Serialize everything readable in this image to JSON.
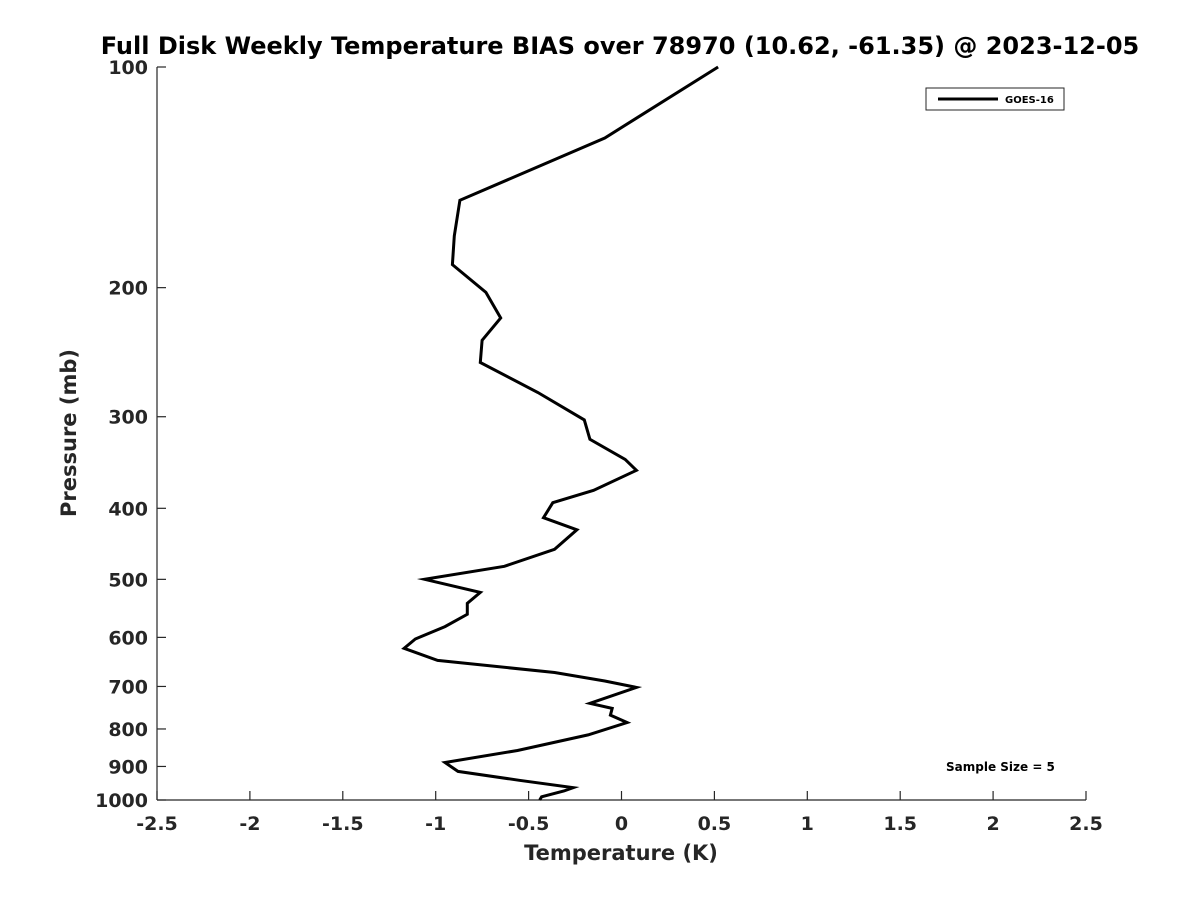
{
  "chart_data": {
    "type": "line",
    "title": "Full Disk Weekly Temperature BIAS over 78970 (10.62, -61.35) @ 2023-12-05",
    "xlabel": "Temperature (K)",
    "ylabel": "Pressure (mb)",
    "xlim": [
      -2.5,
      2.5
    ],
    "ylim": [
      100,
      1000
    ],
    "y_scale": "log",
    "y_reversed": true,
    "x_ticks": [
      "-2.5",
      "-2",
      "-1.5",
      "-1",
      "-0.5",
      "0",
      "0.5",
      "1",
      "1.5",
      "2",
      "2.5"
    ],
    "x_tick_values": [
      -2.5,
      -2,
      -1.5,
      -1,
      -0.5,
      0,
      0.5,
      1,
      1.5,
      2,
      2.5
    ],
    "y_ticks": [
      "100",
      "200",
      "300",
      "400",
      "500",
      "600",
      "700",
      "800",
      "900",
      "1000"
    ],
    "y_tick_values": [
      100,
      200,
      300,
      400,
      500,
      600,
      700,
      800,
      900,
      1000
    ],
    "grid": false,
    "legend_position": "top-right",
    "series": [
      {
        "name": "GOES-16",
        "color": "#000000",
        "points": [
          [
            0.52,
            100
          ],
          [
            -0.09,
            125
          ],
          [
            -0.87,
            152
          ],
          [
            -0.9,
            170
          ],
          [
            -0.91,
            186
          ],
          [
            -0.73,
            203
          ],
          [
            -0.65,
            220
          ],
          [
            -0.75,
            236
          ],
          [
            -0.76,
            253
          ],
          [
            -0.45,
            278
          ],
          [
            -0.2,
            303
          ],
          [
            -0.17,
            322
          ],
          [
            0.02,
            343
          ],
          [
            0.08,
            355
          ],
          [
            -0.15,
            378
          ],
          [
            -0.37,
            393
          ],
          [
            -0.42,
            412
          ],
          [
            -0.24,
            428
          ],
          [
            -0.36,
            455
          ],
          [
            -0.63,
            480
          ],
          [
            -1.06,
            500
          ],
          [
            -0.76,
            521
          ],
          [
            -0.83,
            539
          ],
          [
            -0.83,
            558
          ],
          [
            -0.95,
            580
          ],
          [
            -1.11,
            603
          ],
          [
            -1.17,
            621
          ],
          [
            -0.99,
            645
          ],
          [
            -0.36,
            670
          ],
          [
            -0.09,
            688
          ],
          [
            0.08,
            702
          ],
          [
            -0.17,
            738
          ],
          [
            -0.05,
            750
          ],
          [
            -0.06,
            766
          ],
          [
            0.03,
            784
          ],
          [
            -0.18,
            815
          ],
          [
            -0.56,
            856
          ],
          [
            -0.95,
            889
          ],
          [
            -0.88,
            914
          ],
          [
            -0.55,
            940
          ],
          [
            -0.26,
            962
          ],
          [
            -0.31,
            972
          ],
          [
            -0.43,
            990
          ],
          [
            -0.44,
            1000
          ]
        ]
      }
    ],
    "annotation": "Sample Size = 5"
  }
}
